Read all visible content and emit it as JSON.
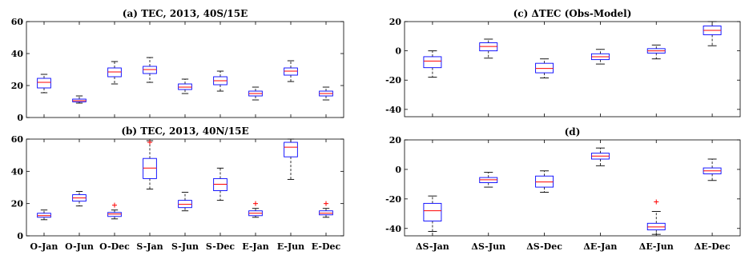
{
  "chart_data": [
    {
      "id": "a",
      "type": "box",
      "title": "(a) TEC, 2013, 40S/15E",
      "ylim": [
        0,
        60
      ],
      "yticks": [
        0,
        20,
        40,
        60
      ],
      "show_xlabels": false,
      "categories": [
        "O-Jan",
        "O-Jun",
        "O-Dec",
        "S-Jan",
        "S-Jun",
        "S-Dec",
        "E-Jan",
        "E-Jun",
        "E-Dec"
      ],
      "boxes": [
        {
          "whislo": 15.5,
          "q1": 18.5,
          "med": 22,
          "q3": 24.5,
          "whishi": 27,
          "fliers": []
        },
        {
          "whislo": 9,
          "q1": 9.8,
          "med": 10.5,
          "q3": 11.5,
          "whishi": 13.5,
          "fliers": []
        },
        {
          "whislo": 21,
          "q1": 25.5,
          "med": 28.5,
          "q3": 31,
          "whishi": 35,
          "fliers": []
        },
        {
          "whislo": 22,
          "q1": 27.5,
          "med": 30,
          "q3": 32,
          "whishi": 37.5,
          "fliers": []
        },
        {
          "whislo": 15,
          "q1": 17.5,
          "med": 19,
          "q3": 21,
          "whishi": 24,
          "fliers": []
        },
        {
          "whislo": 16.5,
          "q1": 20.5,
          "med": 23,
          "q3": 25.5,
          "whishi": 29,
          "fliers": []
        },
        {
          "whislo": 11,
          "q1": 13.5,
          "med": 15,
          "q3": 16.5,
          "whishi": 19,
          "fliers": []
        },
        {
          "whislo": 22.5,
          "q1": 26.5,
          "med": 29,
          "q3": 31,
          "whishi": 35.5,
          "fliers": []
        },
        {
          "whislo": 11,
          "q1": 13.5,
          "med": 15,
          "q3": 16.5,
          "whishi": 19,
          "fliers": []
        }
      ]
    },
    {
      "id": "b",
      "type": "box",
      "title": "(b) TEC, 2013, 40N/15E",
      "ylim": [
        0,
        60
      ],
      "yticks": [
        0,
        20,
        40,
        60
      ],
      "show_xlabels": true,
      "categories": [
        "O-Jan",
        "O-Jun",
        "O-Dec",
        "S-Jan",
        "S-Jun",
        "S-Dec",
        "E-Jan",
        "E-Jun",
        "E-Dec"
      ],
      "boxes": [
        {
          "whislo": 10,
          "q1": 11.5,
          "med": 12.5,
          "q3": 14,
          "whishi": 16,
          "fliers": []
        },
        {
          "whislo": 18.5,
          "q1": 21.5,
          "med": 23.5,
          "q3": 25.5,
          "whishi": 27.5,
          "fliers": []
        },
        {
          "whislo": 10.5,
          "q1": 12,
          "med": 13.5,
          "q3": 14.5,
          "whishi": 16,
          "fliers": [
            19
          ]
        },
        {
          "whislo": 29,
          "q1": 35.5,
          "med": 42,
          "q3": 48,
          "whishi": 59,
          "fliers": [
            58
          ]
        },
        {
          "whislo": 15.5,
          "q1": 17.5,
          "med": 19.5,
          "q3": 22,
          "whishi": 27,
          "fliers": []
        },
        {
          "whislo": 22,
          "q1": 28,
          "med": 32,
          "q3": 35.5,
          "whishi": 42,
          "fliers": []
        },
        {
          "whislo": 11.5,
          "q1": 12.5,
          "med": 14,
          "q3": 15.5,
          "whishi": 17,
          "fliers": [
            20
          ]
        },
        {
          "whislo": 35,
          "q1": 49,
          "med": 55,
          "q3": 58,
          "whishi": 60,
          "fliers": []
        },
        {
          "whislo": 11.5,
          "q1": 13,
          "med": 14,
          "q3": 15.5,
          "whishi": 17,
          "fliers": [
            20
          ]
        }
      ]
    },
    {
      "id": "c",
      "type": "box",
      "title": "(c) ΔTEC (Obs-Model)",
      "ylim": [
        -45,
        20
      ],
      "yticks": [
        -40,
        -20,
        0,
        20
      ],
      "show_xlabels": false,
      "categories": [
        "ΔS-Jan",
        "ΔS-Jun",
        "ΔS-Dec",
        "ΔE-Jan",
        "ΔE-Jun",
        "ΔE-Dec"
      ],
      "boxes": [
        {
          "whislo": -18,
          "q1": -11.5,
          "med": -7,
          "q3": -4,
          "whishi": 0,
          "fliers": []
        },
        {
          "whislo": -5,
          "q1": 0,
          "med": 3,
          "q3": 5.5,
          "whishi": 8,
          "fliers": []
        },
        {
          "whislo": -18.5,
          "q1": -15,
          "med": -12,
          "q3": -8.5,
          "whishi": -5.5,
          "fliers": []
        },
        {
          "whislo": -9,
          "q1": -6,
          "med": -4,
          "q3": -2,
          "whishi": 1,
          "fliers": []
        },
        {
          "whislo": -5.5,
          "q1": -1.5,
          "med": 0,
          "q3": 1.5,
          "whishi": 4,
          "fliers": []
        },
        {
          "whislo": 3.5,
          "q1": 11,
          "med": 14,
          "q3": 17,
          "whishi": 20,
          "fliers": []
        }
      ]
    },
    {
      "id": "d",
      "type": "box",
      "title": "(d)",
      "ylim": [
        -45,
        20
      ],
      "yticks": [
        -40,
        -20,
        0,
        20
      ],
      "show_xlabels": true,
      "categories": [
        "ΔS-Jan",
        "ΔS-Jun",
        "ΔS-Dec",
        "ΔE-Jan",
        "ΔE-Jun",
        "ΔE-Dec"
      ],
      "boxes": [
        {
          "whislo": -42,
          "q1": -35,
          "med": -28,
          "q3": -23,
          "whishi": -18,
          "fliers": []
        },
        {
          "whislo": -12,
          "q1": -9,
          "med": -7,
          "q3": -5.5,
          "whishi": -2,
          "fliers": []
        },
        {
          "whislo": -15.5,
          "q1": -12,
          "med": -8.5,
          "q3": -4.5,
          "whishi": -1,
          "fliers": []
        },
        {
          "whislo": 2.5,
          "q1": 7,
          "med": 9,
          "q3": 11,
          "whishi": 14.5,
          "fliers": []
        },
        {
          "whislo": -44,
          "q1": -41,
          "med": -39,
          "q3": -36.5,
          "whishi": -28.5,
          "fliers": [
            -22
          ]
        },
        {
          "whislo": -7.5,
          "q1": -3,
          "med": -1,
          "q3": 1,
          "whishi": 7,
          "fliers": []
        }
      ]
    }
  ],
  "colors": {
    "box": "#0000ff",
    "median": "#ff0000",
    "whisker": "#000000",
    "flier": "#ff0000",
    "axis": "#000000"
  }
}
